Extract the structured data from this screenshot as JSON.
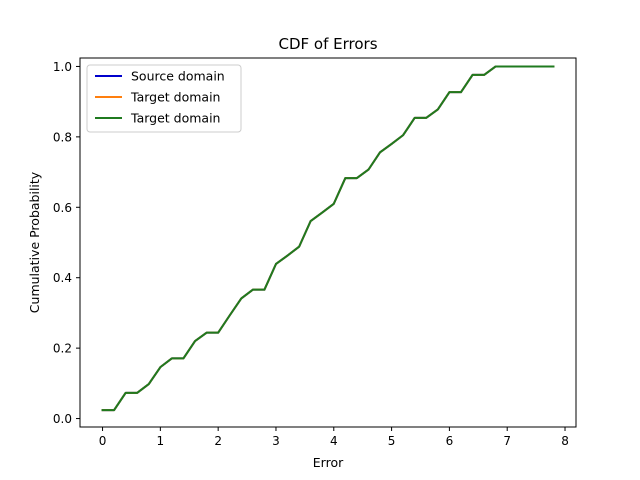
{
  "chart_data": {
    "type": "line",
    "title": "CDF of Errors",
    "xlabel": "Error",
    "ylabel": "Cumulative Probability",
    "xlim": [
      -0.39,
      8.19
    ],
    "ylim": [
      -0.024,
      1.024
    ],
    "xticks": [
      0,
      1,
      2,
      3,
      4,
      5,
      6,
      7,
      8
    ],
    "yticks": [
      0.0,
      0.2,
      0.4,
      0.6,
      0.8,
      1.0
    ],
    "xtick_labels": [
      "0",
      "1",
      "2",
      "3",
      "4",
      "5",
      "6",
      "7",
      "8"
    ],
    "ytick_labels": [
      "0.0",
      "0.2",
      "0.4",
      "0.6",
      "0.8",
      "1.0"
    ],
    "grid": false,
    "legend_position": "top-left",
    "x": [
      0.0,
      0.2,
      0.4,
      0.6,
      0.8,
      1.0,
      1.2,
      1.4,
      1.6,
      1.8,
      2.0,
      2.2,
      2.4,
      2.6,
      2.8,
      3.0,
      3.2,
      3.4,
      3.6,
      3.8,
      4.0,
      4.2,
      4.4,
      4.6,
      4.8,
      5.0,
      5.2,
      5.4,
      5.6,
      5.8,
      6.0,
      6.2,
      6.4,
      6.6,
      6.8,
      7.0,
      7.2,
      7.4,
      7.6,
      7.8
    ],
    "series": [
      {
        "name": "Source domain",
        "color": "#0000cc",
        "values": [
          0.024,
          0.024,
          0.073,
          0.073,
          0.098,
          0.146,
          0.171,
          0.171,
          0.22,
          0.244,
          0.244,
          0.293,
          0.341,
          0.366,
          0.366,
          0.439,
          0.463,
          0.488,
          0.561,
          0.585,
          0.61,
          0.683,
          0.683,
          0.707,
          0.756,
          0.78,
          0.805,
          0.854,
          0.854,
          0.878,
          0.927,
          0.927,
          0.976,
          0.976,
          1.0,
          1.0,
          1.0,
          1.0,
          1.0,
          1.0
        ]
      },
      {
        "name": "Target domain",
        "color": "#ff7f0e",
        "values": [
          0.024,
          0.024,
          0.073,
          0.073,
          0.098,
          0.146,
          0.171,
          0.171,
          0.22,
          0.244,
          0.244,
          0.293,
          0.341,
          0.366,
          0.366,
          0.439,
          0.463,
          0.488,
          0.561,
          0.585,
          0.61,
          0.683,
          0.683,
          0.707,
          0.756,
          0.78,
          0.805,
          0.854,
          0.854,
          0.878,
          0.927,
          0.927,
          0.976,
          0.976,
          1.0,
          1.0,
          1.0,
          1.0,
          1.0,
          1.0
        ]
      },
      {
        "name": "Target domain",
        "color": "#1f7a1f",
        "values": [
          0.024,
          0.024,
          0.073,
          0.073,
          0.098,
          0.146,
          0.171,
          0.171,
          0.22,
          0.244,
          0.244,
          0.293,
          0.341,
          0.366,
          0.366,
          0.439,
          0.463,
          0.488,
          0.561,
          0.585,
          0.61,
          0.683,
          0.683,
          0.707,
          0.756,
          0.78,
          0.805,
          0.854,
          0.854,
          0.878,
          0.927,
          0.927,
          0.976,
          0.976,
          1.0,
          1.0,
          1.0,
          1.0,
          1.0,
          1.0
        ]
      }
    ]
  }
}
